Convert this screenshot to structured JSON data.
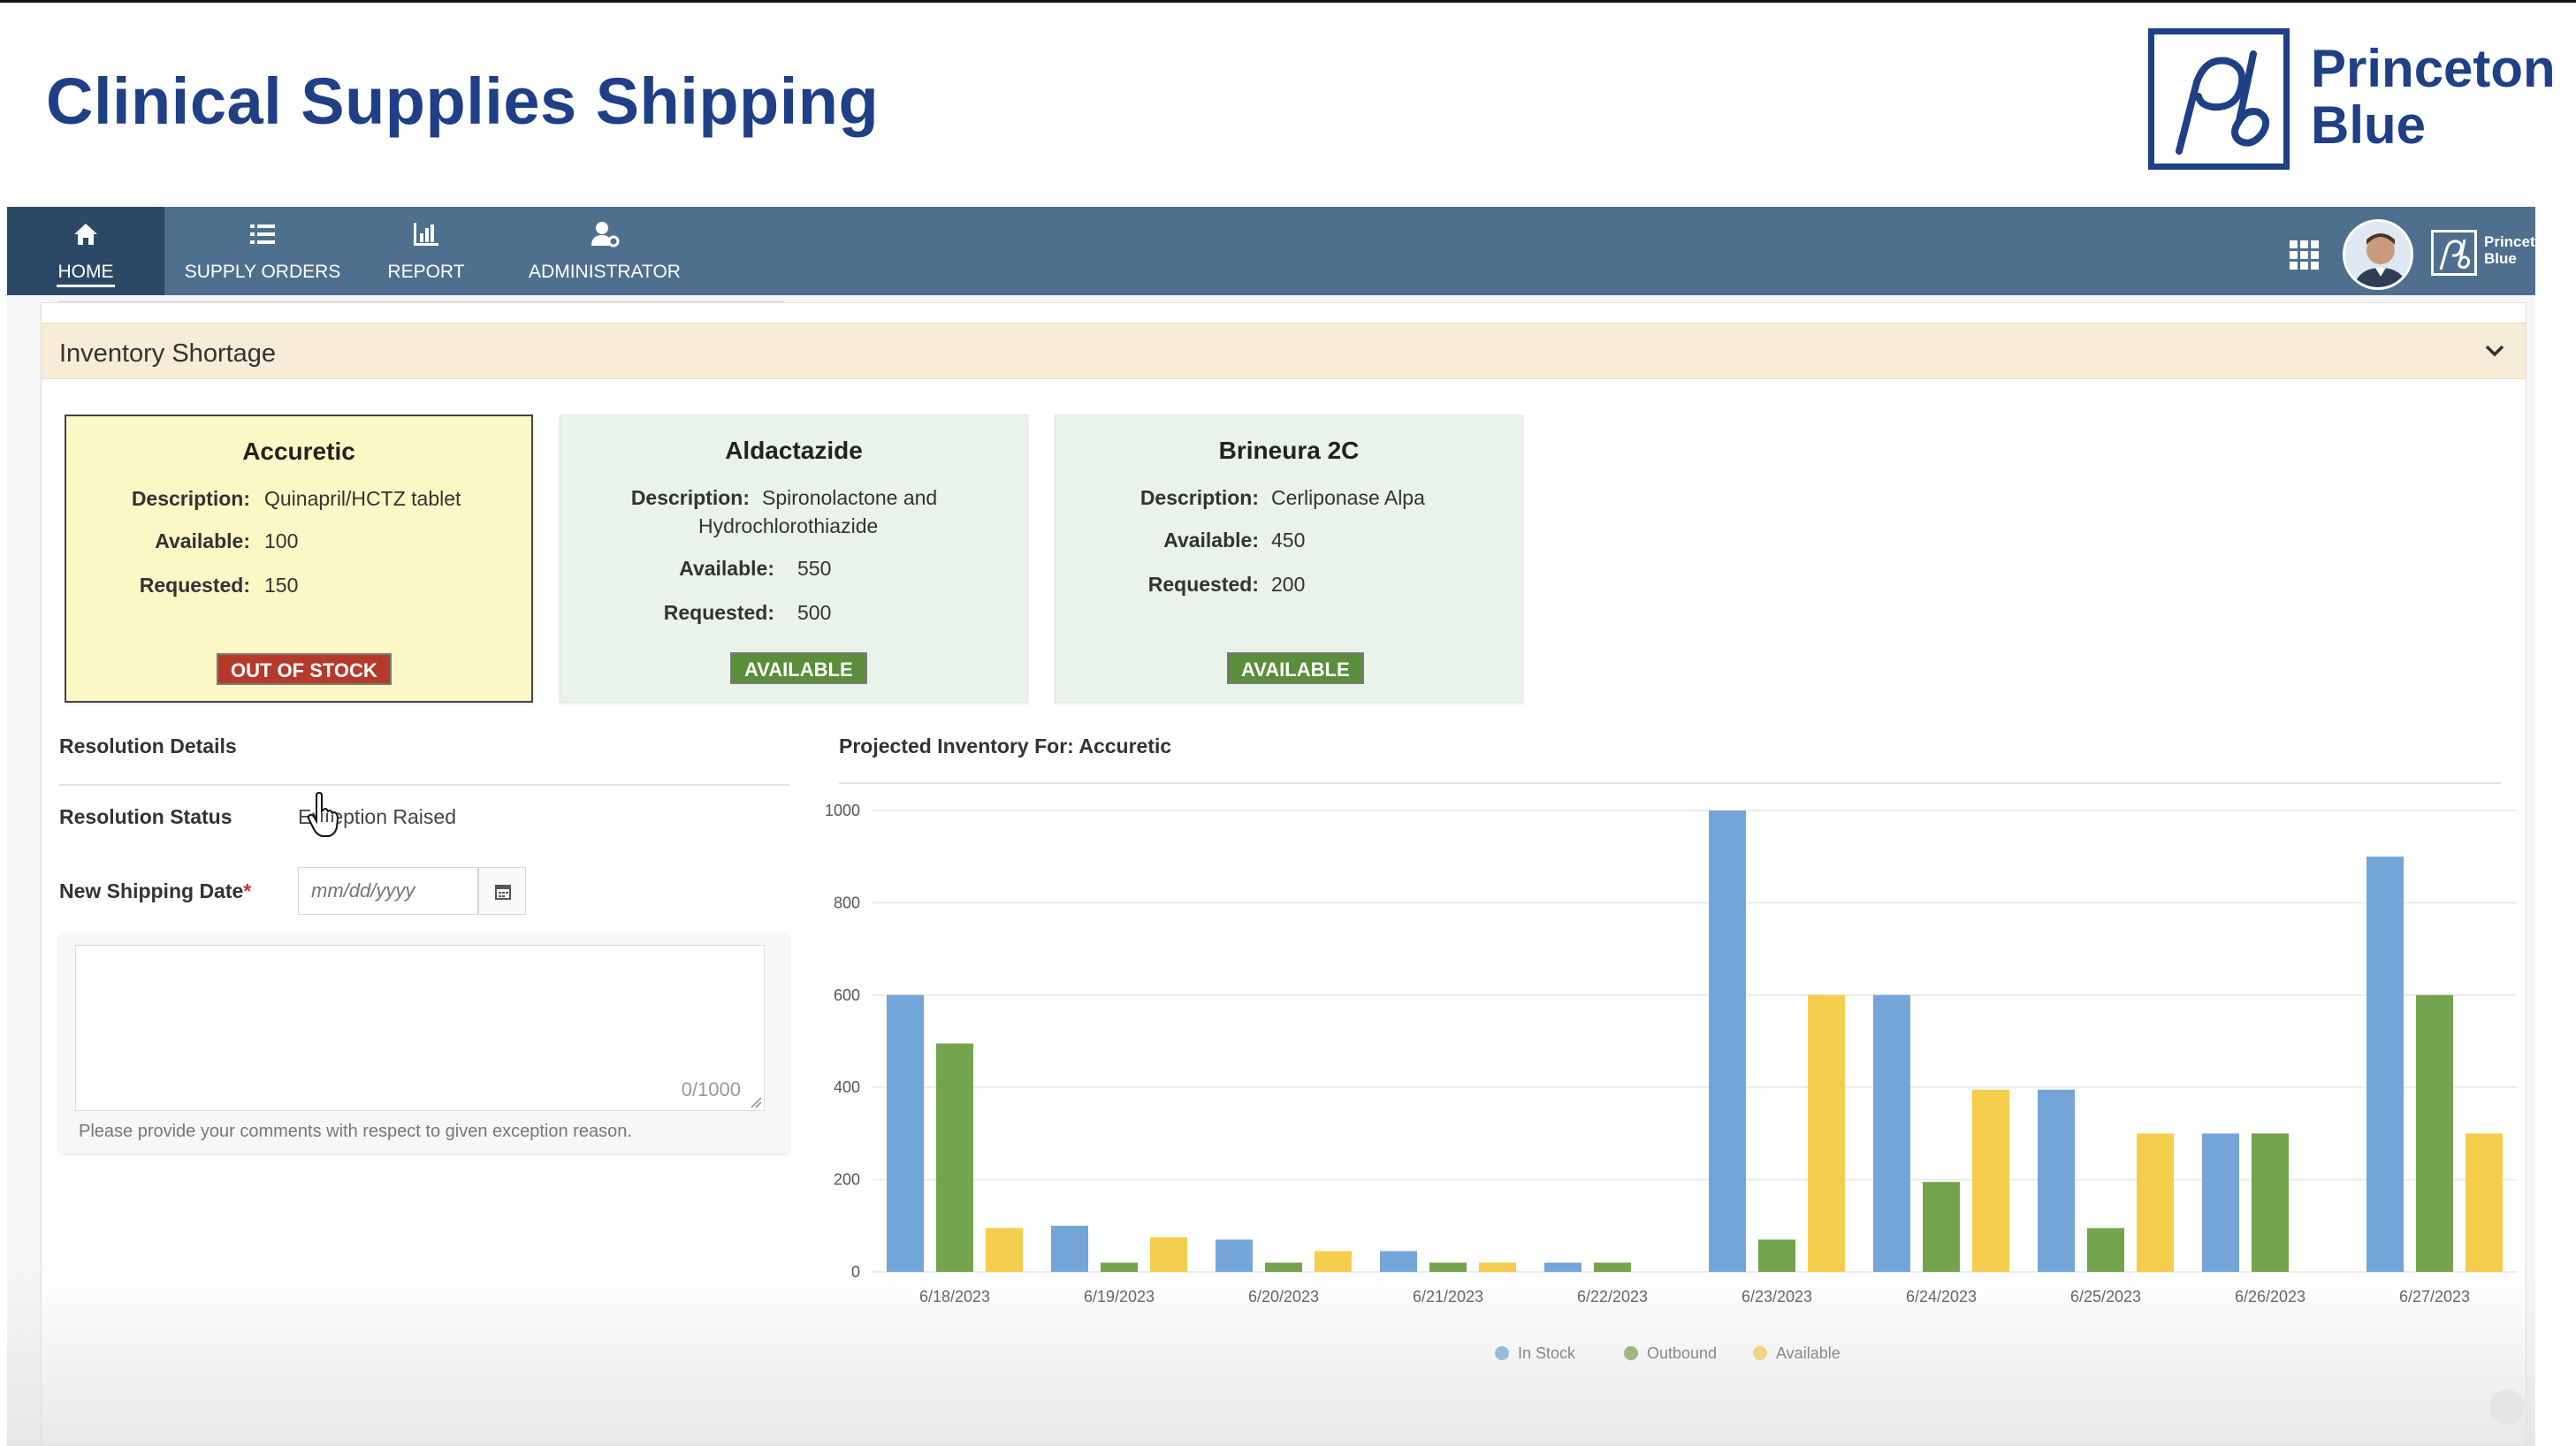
{
  "slide": {
    "title": "Clinical Supplies Shipping",
    "brand_name_line1": "Princeton",
    "brand_name_line2": "Blue"
  },
  "nav": {
    "items": [
      {
        "label": "HOME",
        "icon": "home-icon"
      },
      {
        "label": "SUPPLY ORDERS",
        "icon": "list-icon"
      },
      {
        "label": "REPORT",
        "icon": "bar-chart-icon"
      },
      {
        "label": "ADMINISTRATOR",
        "icon": "user-gear-icon"
      }
    ],
    "brand_line1": "Princeton",
    "brand_line2": "Blue",
    "active_color": "#2c4867",
    "bar_color": "#4f6f8f"
  },
  "shortage": {
    "title": "Inventory Shortage",
    "labels": {
      "description": "Description:",
      "available": "Available:",
      "requested": "Requested:"
    },
    "cards": [
      {
        "name": "Accuretic",
        "description": "Quinapril/HCTZ tablet",
        "available": "100",
        "requested": "150",
        "status": "OUT OF STOCK"
      },
      {
        "name": "Aldactazide",
        "description_line1": "Spironolactone and",
        "description_line2": "Hydrochlorothiazide",
        "available": "550",
        "requested": "500",
        "status": "AVAILABLE"
      },
      {
        "name": "Brineura 2C",
        "description": "Cerliponase Alpa",
        "available": "450",
        "requested": "200",
        "status": "AVAILABLE"
      }
    ]
  },
  "resolution": {
    "title": "Resolution Details",
    "status_label": "Resolution Status",
    "status_value": "Exception Raised",
    "date_label": "New Shipping Date",
    "required_mark": "*",
    "date_placeholder": "mm/dd/yyyy",
    "counter": "0/1000",
    "hint": "Please provide your comments with respect to given exception reason."
  },
  "chart_title": "Projected Inventory For: Accuretic",
  "chart_data": {
    "type": "bar",
    "categories": [
      "6/18/2023",
      "6/19/2023",
      "6/20/2023",
      "6/21/2023",
      "6/22/2023",
      "6/23/2023",
      "6/24/2023",
      "6/25/2023",
      "6/26/2023",
      "6/27/2023"
    ],
    "series": [
      {
        "name": "In Stock",
        "color": "#74a5d8",
        "values": [
          600,
          100,
          70,
          45,
          20,
          1000,
          600,
          395,
          300,
          900
        ]
      },
      {
        "name": "Outbound",
        "color": "#74a44e",
        "values": [
          495,
          20,
          20,
          20,
          20,
          70,
          195,
          95,
          300,
          600
        ]
      },
      {
        "name": "Available",
        "color": "#f5cd4d",
        "values": [
          95,
          75,
          45,
          20,
          0,
          600,
          395,
          300,
          0,
          300
        ]
      }
    ],
    "yticks": [
      0,
      200,
      400,
      600,
      800,
      1000
    ],
    "ylim": [
      0,
      1000
    ],
    "grid": true,
    "legend_position": "bottom"
  }
}
